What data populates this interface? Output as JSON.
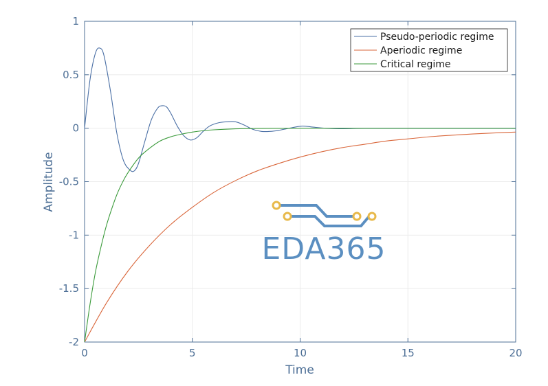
{
  "chart_data": {
    "type": "line",
    "title": "",
    "xlabel": "Time",
    "ylabel": "Amplitude",
    "xlim": [
      0,
      20
    ],
    "ylim": [
      -2,
      1
    ],
    "xticks": [
      0,
      5,
      10,
      15,
      20
    ],
    "xtick_labels": [
      "0",
      "5",
      "10",
      "15",
      "20"
    ],
    "yticks": [
      1,
      0.5,
      0,
      -0.5,
      -1,
      -1.5,
      -2
    ],
    "ytick_labels": [
      "1",
      "0.5",
      "0",
      "-0.5",
      "-1",
      "-1.5",
      "-2"
    ],
    "grid": true,
    "legend_position": "top-right",
    "series": [
      {
        "name": "Pseudo-periodic regime",
        "color": "#4a6fa5",
        "x": [
          0,
          0.25,
          0.5,
          0.7,
          0.9,
          1.2,
          1.5,
          1.8,
          2.1,
          2.3,
          2.5,
          2.8,
          3.1,
          3.4,
          3.6,
          3.8,
          4.0,
          4.3,
          4.6,
          4.9,
          5.2,
          5.5,
          5.8,
          6.2,
          6.6,
          7.0,
          7.4,
          7.8,
          8.2,
          8.6,
          9.0,
          9.5,
          10.1,
          10.6,
          11.2,
          12.0,
          13.0,
          14.5,
          16.0,
          18.0,
          20.0
        ],
        "y": [
          0,
          0.45,
          0.7,
          0.75,
          0.68,
          0.35,
          -0.05,
          -0.3,
          -0.39,
          -0.4,
          -0.33,
          -0.12,
          0.08,
          0.19,
          0.21,
          0.2,
          0.14,
          0.02,
          -0.07,
          -0.11,
          -0.09,
          -0.03,
          0.02,
          0.05,
          0.06,
          0.06,
          0.03,
          -0.01,
          -0.03,
          -0.03,
          -0.02,
          0.0,
          0.02,
          0.01,
          0.0,
          -0.005,
          0.0,
          0.0,
          0.0,
          0.0,
          0.0
        ]
      },
      {
        "name": "Aperiodic regime",
        "color": "#d9663a",
        "x": [
          0,
          1,
          2,
          3,
          4,
          5,
          6,
          7,
          8,
          9,
          10,
          11,
          12,
          13,
          14,
          15,
          16,
          17,
          18,
          19,
          20
        ],
        "y": [
          -2,
          -1.64,
          -1.34,
          -1.1,
          -0.9,
          -0.74,
          -0.6,
          -0.49,
          -0.4,
          -0.33,
          -0.27,
          -0.22,
          -0.18,
          -0.15,
          -0.12,
          -0.1,
          -0.08,
          -0.066,
          -0.054,
          -0.044,
          -0.036
        ]
      },
      {
        "name": "Critical regime",
        "color": "#3a9a3a",
        "x": [
          0,
          0.25,
          0.5,
          0.75,
          1,
          1.25,
          1.5,
          1.75,
          2,
          2.5,
          3,
          3.5,
          4,
          4.5,
          5,
          5.5,
          6,
          7,
          8,
          9,
          10,
          12,
          14,
          16,
          18,
          20
        ],
        "y": [
          -2,
          -1.65,
          -1.35,
          -1.12,
          -0.92,
          -0.76,
          -0.62,
          -0.51,
          -0.42,
          -0.28,
          -0.19,
          -0.12,
          -0.08,
          -0.055,
          -0.036,
          -0.023,
          -0.015,
          -0.006,
          -0.002,
          -0.001,
          0.0,
          0.0,
          0.0,
          0.0,
          0.0,
          0.0
        ]
      }
    ]
  },
  "watermark": {
    "text": "EDA365",
    "color": "#5b8fc1",
    "accent_color": "#e8b94a"
  }
}
